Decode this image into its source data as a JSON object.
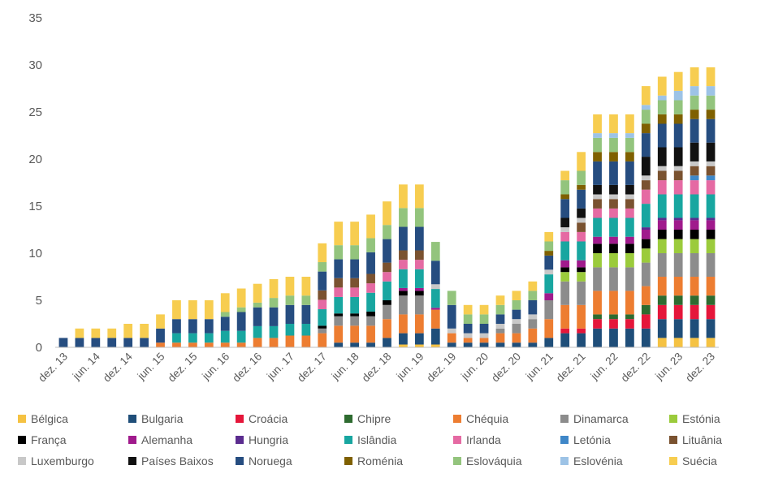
{
  "chart_data": {
    "type": "bar",
    "stacked": true,
    "title": "",
    "xlabel": "",
    "ylabel": "",
    "ylim": [
      0,
      35
    ],
    "yticks": [
      0,
      5,
      10,
      15,
      20,
      25,
      30,
      35
    ],
    "grid": false,
    "legend_position": "bottom",
    "categories": [
      "dez. 13",
      "mar. 14",
      "jun. 14",
      "set. 14",
      "dez. 14",
      "mar. 15",
      "jun. 15",
      "set. 15",
      "dez. 15",
      "mar. 16",
      "jun. 16",
      "set. 16",
      "dez. 16",
      "mar. 17",
      "jun. 17",
      "set. 17",
      "dez. 17",
      "mar. 18",
      "jun. 18",
      "set. 18",
      "dez. 18",
      "mar. 19",
      "jun. 19",
      "set. 19",
      "dez. 19",
      "mar. 20",
      "jun. 20",
      "set. 20",
      "dez. 20",
      "mar. 21",
      "jun. 21",
      "set. 21",
      "dez. 21",
      "mar. 22",
      "jun. 22",
      "set. 22",
      "dez. 22",
      "mar. 23",
      "jun. 23",
      "set. 23",
      "dez. 23"
    ],
    "tick_labels": [
      "dez. 13",
      "jun. 14",
      "dez. 14",
      "jun. 15",
      "dez. 15",
      "jun. 16",
      "dez. 16",
      "jun. 17",
      "dez. 17",
      "jun. 18",
      "dez. 18",
      "jun. 19",
      "dez. 19",
      "jun. 20",
      "dez. 20",
      "jun. 21",
      "dez. 21",
      "jun. 22",
      "dez. 22",
      "jun. 23",
      "dez. 23"
    ],
    "series": [
      {
        "name": "Bélgica",
        "color": "#f5c242",
        "values": [
          0,
          0,
          0,
          0,
          0,
          0,
          0,
          0,
          0,
          0,
          0,
          0,
          0,
          0,
          0,
          0,
          0,
          0,
          0,
          0,
          0,
          0.3,
          0.3,
          0.3,
          0,
          0,
          0,
          0,
          0,
          0,
          0,
          0,
          0,
          0,
          0,
          0,
          0,
          1,
          1,
          1,
          1
        ]
      },
      {
        "name": "Bulgaria",
        "color": "#1f4e79",
        "values": [
          0,
          0,
          0,
          0,
          0,
          0,
          0,
          0,
          0,
          0,
          0,
          0,
          0,
          0,
          0,
          0,
          0,
          0.5,
          0.5,
          0.5,
          1,
          1.2,
          1.2,
          1.7,
          0.5,
          0.5,
          0.5,
          0.5,
          0.5,
          0.5,
          1,
          1.5,
          1.5,
          2,
          2,
          2,
          2,
          2,
          2,
          2,
          2
        ]
      },
      {
        "name": "Croácia",
        "color": "#e5163a",
        "values": [
          0,
          0,
          0,
          0,
          0,
          0,
          0,
          0,
          0,
          0,
          0,
          0,
          0,
          0,
          0,
          0,
          0,
          0,
          0,
          0,
          0,
          0,
          0,
          0,
          0,
          0,
          0,
          0,
          0,
          0,
          0,
          0.5,
          0.5,
          1,
          1,
          1,
          1.5,
          1.5,
          1.5,
          1.5,
          1.5
        ]
      },
      {
        "name": "Chipre",
        "color": "#2e6b30",
        "values": [
          0,
          0,
          0,
          0,
          0,
          0,
          0,
          0,
          0,
          0,
          0,
          0,
          0,
          0,
          0,
          0,
          0,
          0,
          0,
          0,
          0,
          0,
          0,
          0,
          0,
          0,
          0,
          0,
          0,
          0,
          0,
          0,
          0,
          0.5,
          0.5,
          0.5,
          1,
          1,
          1,
          1,
          1
        ]
      },
      {
        "name": "Chéquia",
        "color": "#ed7d31",
        "values": [
          0,
          0,
          0,
          0,
          0,
          0,
          0.5,
          0.5,
          0.5,
          0.5,
          0.5,
          0.5,
          1,
          1,
          1.25,
          1.25,
          1.5,
          1.8,
          1.8,
          1.8,
          2,
          2,
          2,
          2,
          1,
          0.5,
          0.5,
          1,
          1,
          1.5,
          2,
          2.5,
          2.5,
          2.5,
          2.5,
          2.5,
          2,
          2,
          2,
          2,
          2
        ]
      },
      {
        "name": "Dinamarca",
        "color": "#8c8c8c",
        "values": [
          0,
          0,
          0,
          0,
          0,
          0,
          0,
          0,
          0,
          0,
          0,
          0,
          0,
          0,
          0,
          0,
          0.5,
          1,
          1,
          1,
          1.5,
          2,
          2,
          0,
          0,
          0,
          0,
          0.5,
          1,
          1,
          2,
          2.5,
          2.5,
          2.5,
          2.5,
          2.5,
          2.5,
          2.5,
          2.5,
          2.5,
          2.5
        ]
      },
      {
        "name": "Estónia",
        "color": "#9bcb3c",
        "values": [
          0,
          0,
          0,
          0,
          0,
          0,
          0,
          0,
          0,
          0,
          0,
          0,
          0,
          0,
          0,
          0,
          0,
          0,
          0,
          0,
          0,
          0,
          0,
          0,
          0,
          0,
          0,
          0,
          0,
          0,
          0,
          1,
          1,
          1.5,
          1.5,
          1.5,
          1.5,
          1.5,
          1.5,
          1.5,
          1.5
        ]
      },
      {
        "name": "França",
        "color": "#000000",
        "values": [
          0,
          0,
          0,
          0,
          0,
          0,
          0,
          0,
          0,
          0,
          0,
          0,
          0,
          0,
          0,
          0,
          0.3,
          0.3,
          0.3,
          0.5,
          0.5,
          0.5,
          0.5,
          0,
          0,
          0,
          0,
          0,
          0,
          0,
          0,
          0.5,
          0.5,
          1,
          1,
          1,
          1,
          1,
          1,
          1,
          1
        ]
      },
      {
        "name": "Alemanha",
        "color": "#a01a8c",
        "values": [
          0,
          0,
          0,
          0,
          0,
          0,
          0,
          0,
          0,
          0,
          0,
          0,
          0,
          0,
          0,
          0,
          0,
          0,
          0,
          0,
          0,
          0.3,
          0.3,
          0.2,
          0,
          0,
          0,
          0,
          0,
          0,
          0.75,
          0.75,
          0.75,
          0.75,
          0.75,
          0.75,
          1,
          1,
          1,
          1,
          1
        ]
      },
      {
        "name": "Hungria",
        "color": "#5b2c8f",
        "values": [
          0,
          0,
          0,
          0,
          0,
          0,
          0,
          0,
          0,
          0,
          0,
          0,
          0,
          0,
          0,
          0,
          0,
          0,
          0,
          0,
          0,
          0,
          0,
          0,
          0,
          0,
          0,
          0,
          0,
          0,
          0,
          0,
          0,
          0,
          0,
          0,
          0.25,
          0.25,
          0.25,
          0.25,
          0.25
        ]
      },
      {
        "name": "Islândia",
        "color": "#18a6a0",
        "values": [
          0,
          0,
          0,
          0,
          0,
          0,
          0,
          1,
          1,
          1,
          1.25,
          1.25,
          1.25,
          1.25,
          1.25,
          1.25,
          1.75,
          1.75,
          1.75,
          2,
          2,
          2,
          2,
          2,
          0,
          0,
          0,
          0,
          0,
          0,
          2,
          2,
          2,
          2,
          2,
          2,
          2.5,
          2.5,
          2.5,
          2.5,
          2.5
        ]
      },
      {
        "name": "Irlanda",
        "color": "#e56aa3",
        "values": [
          0,
          0,
          0,
          0,
          0,
          0,
          0,
          0,
          0,
          0,
          0,
          0,
          0,
          0,
          0,
          0,
          1,
          1,
          1,
          1,
          1,
          1,
          1,
          0,
          0,
          0,
          0,
          0,
          0,
          0,
          0,
          1,
          1,
          1,
          1,
          1,
          1.5,
          1.5,
          1.5,
          1.5,
          1.5
        ]
      },
      {
        "name": "Letónia",
        "color": "#3f87c8",
        "values": [
          0,
          0,
          0,
          0,
          0,
          0,
          0,
          0,
          0,
          0,
          0,
          0,
          0,
          0,
          0,
          0,
          0,
          0,
          0,
          0,
          0,
          0,
          0,
          0,
          0,
          0,
          0,
          0,
          0,
          0,
          0,
          0,
          0,
          0,
          0,
          0,
          0,
          0,
          0,
          0.5,
          0.5
        ]
      },
      {
        "name": "Lituânia",
        "color": "#7a5230",
        "values": [
          0,
          0,
          0,
          0,
          0,
          0,
          0,
          0,
          0,
          0,
          0,
          0,
          0,
          0,
          0,
          0,
          1,
          1,
          1,
          1,
          1,
          1,
          1,
          0,
          0,
          0,
          0,
          0,
          0,
          0,
          0,
          0,
          1,
          1,
          1,
          1,
          1,
          1,
          1,
          1,
          1
        ]
      },
      {
        "name": "Luxemburgo",
        "color": "#c8c8c8",
        "values": [
          0,
          0,
          0,
          0,
          0,
          0,
          0,
          0,
          0,
          0,
          0,
          0,
          0,
          0,
          0,
          0,
          0,
          0,
          0,
          0,
          0,
          0,
          0,
          0.5,
          0.5,
          0.5,
          0.5,
          0.5,
          0.5,
          0.5,
          0.5,
          0.5,
          0.5,
          0.5,
          0.5,
          0.5,
          0.5,
          0.5,
          0.5,
          0.5,
          0.5
        ]
      },
      {
        "name": "Países Baixos",
        "color": "#111111",
        "values": [
          0,
          0,
          0,
          0,
          0,
          0,
          0,
          0,
          0,
          0,
          0,
          0,
          0,
          0,
          0,
          0,
          0,
          0,
          0,
          0,
          0,
          0,
          0,
          0,
          0,
          0,
          0,
          0,
          0,
          0,
          0,
          1,
          1,
          1,
          1,
          1,
          2,
          2,
          2,
          2,
          2
        ]
      },
      {
        "name": "Noruega",
        "color": "#264d80",
        "values": [
          1,
          1,
          1,
          1,
          1,
          1,
          1.5,
          1.5,
          1.5,
          1.5,
          1.5,
          2,
          2,
          2,
          2,
          2,
          2,
          2,
          2,
          2.3,
          2.5,
          2.5,
          2.5,
          2.5,
          2.5,
          1,
          1,
          1,
          1,
          1.5,
          1.5,
          2,
          2,
          2.5,
          2.5,
          2.5,
          2.5,
          2.5,
          2.5,
          2.5,
          2.5
        ]
      },
      {
        "name": "Roménia",
        "color": "#7f6000",
        "values": [
          0,
          0,
          0,
          0,
          0,
          0,
          0,
          0,
          0,
          0,
          0,
          0,
          0,
          0,
          0,
          0,
          0,
          0,
          0,
          0,
          0,
          0,
          0,
          0,
          0,
          0,
          0,
          0,
          0,
          0,
          0.5,
          0.5,
          0.5,
          1,
          1,
          1,
          1,
          1,
          1,
          1,
          1
        ]
      },
      {
        "name": "Eslováquia",
        "color": "#93c47d",
        "values": [
          0,
          0,
          0,
          0,
          0,
          0,
          0,
          0,
          0,
          0,
          0.5,
          0.5,
          0.5,
          1,
          1,
          1,
          1,
          1.5,
          1.5,
          1.5,
          1.5,
          2,
          2,
          2,
          1.5,
          1,
          1,
          1,
          1,
          1,
          1,
          1.5,
          1.5,
          1.5,
          1.5,
          1.5,
          1.5,
          1.5,
          1.5,
          1.5,
          1.5
        ]
      },
      {
        "name": "Eslovénia",
        "color": "#9dc3e6",
        "values": [
          0,
          0,
          0,
          0,
          0,
          0,
          0,
          0,
          0,
          0,
          0,
          0,
          0,
          0,
          0,
          0,
          0,
          0,
          0,
          0,
          0,
          0,
          0,
          0,
          0,
          0,
          0,
          0,
          0,
          0,
          0,
          0,
          0,
          0.5,
          0.5,
          0.5,
          0.5,
          0.5,
          1,
          1,
          1
        ]
      },
      {
        "name": "Suécia",
        "color": "#f7cd50",
        "values": [
          0,
          1,
          1,
          1,
          1.5,
          1.5,
          1.5,
          2,
          2,
          2,
          2,
          2,
          2,
          2,
          2,
          2,
          2,
          2.5,
          2.5,
          2.5,
          2.5,
          2.5,
          2.5,
          0,
          0,
          1,
          1,
          1,
          1,
          1,
          1,
          1,
          2,
          2,
          2,
          2,
          2,
          2,
          2,
          2,
          2
        ]
      }
    ]
  }
}
